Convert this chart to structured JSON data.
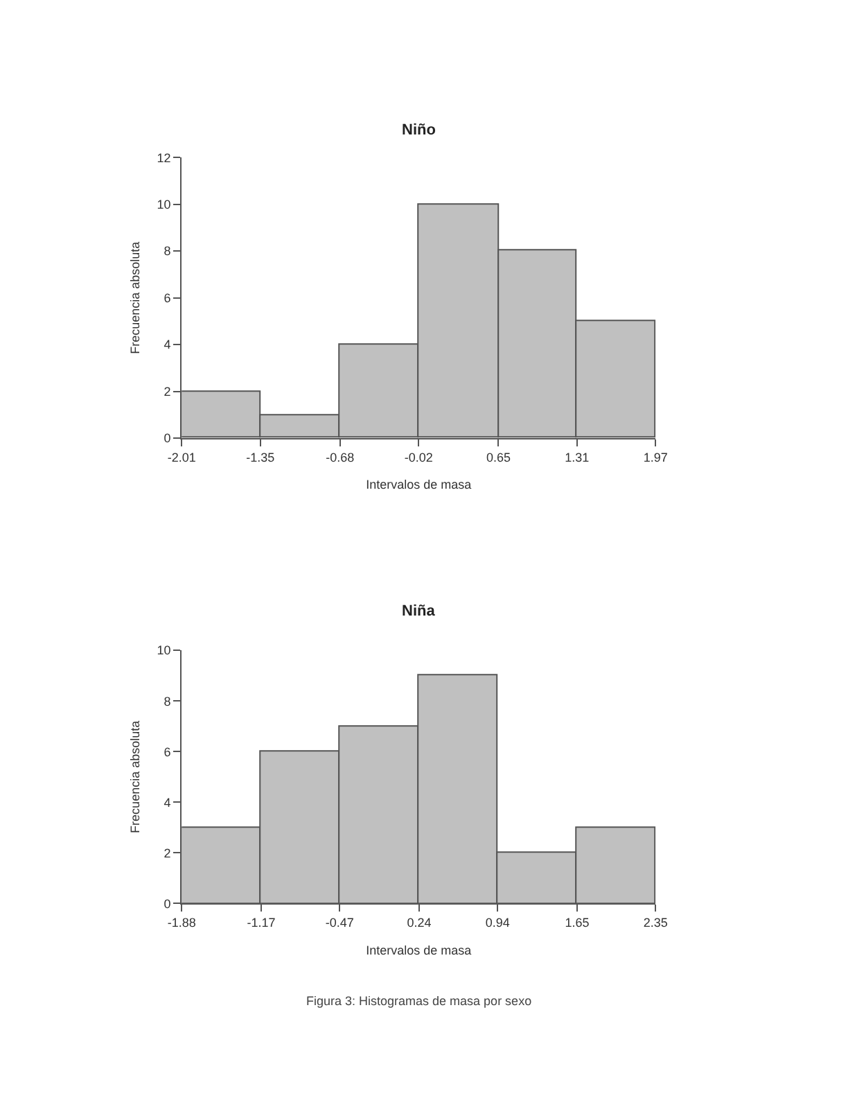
{
  "chart_data": [
    {
      "type": "histogram",
      "title": "Niño",
      "xlabel": "Intervalos de masa",
      "ylabel": "Frecuencia absoluta",
      "bins": [
        -2.01,
        -1.35,
        -0.68,
        -0.02,
        0.65,
        1.31,
        1.97
      ],
      "values": [
        2,
        1,
        4,
        10,
        8,
        5
      ],
      "color": "#c0c0c0",
      "xlim": [
        -2.01,
        1.97
      ],
      "xticks": [
        -2.01,
        -1.35,
        -0.68,
        -0.02,
        0.65,
        1.31,
        1.97
      ],
      "ylim": [
        0,
        12
      ],
      "yticks": [
        0,
        2,
        4,
        6,
        8,
        10,
        12
      ]
    },
    {
      "type": "histogram",
      "title": "Niña",
      "xlabel": "Intervalos de masa",
      "ylabel": "Frecuencia absoluta",
      "bins": [
        -1.88,
        -1.17,
        -0.47,
        0.24,
        0.94,
        1.65,
        2.35
      ],
      "values": [
        3,
        6,
        7,
        9,
        2,
        3
      ],
      "color": "#c0c0c0",
      "xlim": [
        -1.88,
        2.35
      ],
      "xticks": [
        -1.88,
        -1.17,
        -0.47,
        0.24,
        0.94,
        1.65,
        2.35
      ],
      "ylim": [
        0,
        10
      ],
      "yticks": [
        0,
        2,
        4,
        6,
        8,
        10
      ],
      "annotations": [
        "Figura 3: Histogramas de masa por sexo"
      ]
    }
  ]
}
